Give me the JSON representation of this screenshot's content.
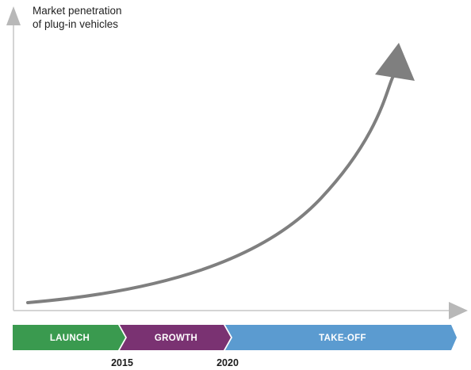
{
  "axis": {
    "y_title_line1": "Market penetration",
    "y_title_line2": "of plug-in vehicles"
  },
  "phases": [
    {
      "label": "LAUNCH",
      "color": "#3a9a4f"
    },
    {
      "label": "GROWTH",
      "color": "#7a3272"
    },
    {
      "label": "TAKE-OFF",
      "color": "#5b9bd0"
    }
  ],
  "years": {
    "first": "2015",
    "second": "2020"
  },
  "colors": {
    "axis": "#d4d4d4",
    "axis_arrow": "#b8b8b8",
    "curve": "#7f7f7f"
  }
}
